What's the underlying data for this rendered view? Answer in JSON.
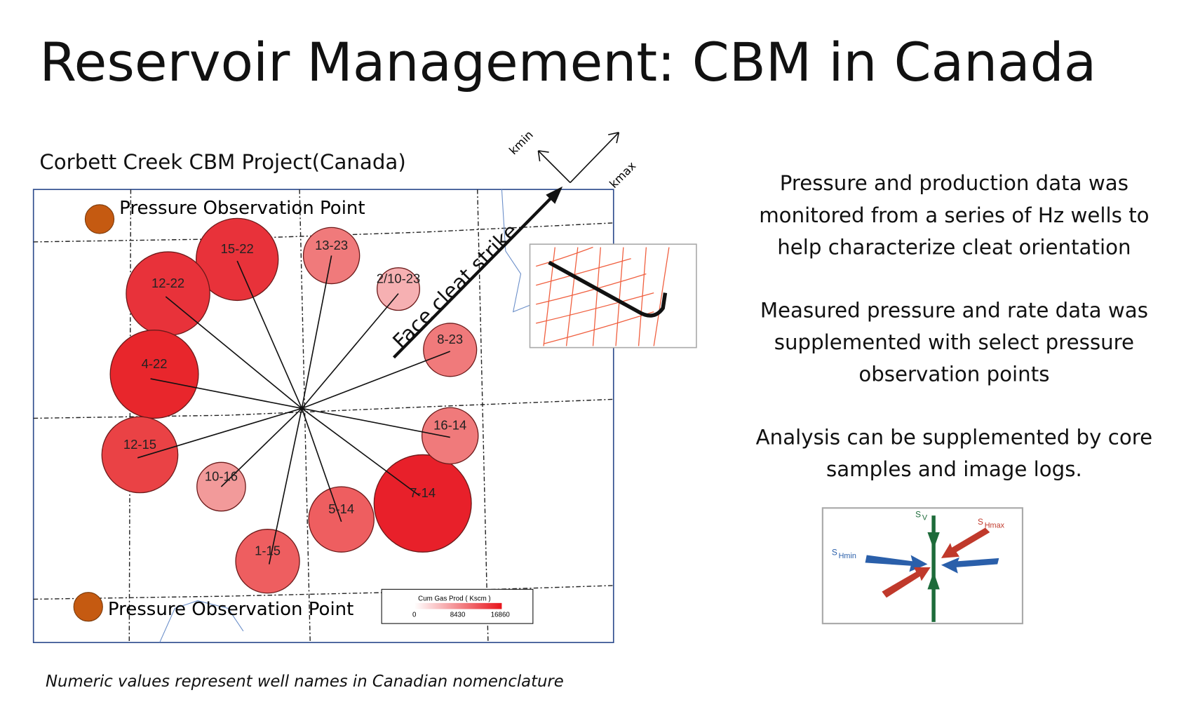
{
  "title": "Reservoir Management: CBM in Canada",
  "map": {
    "heading": "Corbett Creek CBM Project(Canada)",
    "observation_labels": [
      "Pressure Observation Point",
      "Pressure Observation Point"
    ],
    "strike_label": "Face cleat strike",
    "axes": {
      "kmin": "kmin",
      "kmax": "kmax"
    },
    "wells": [
      "15-22",
      "12-22",
      "4-22",
      "12-15",
      "10-16",
      "1-15",
      "5-14",
      "7-14",
      "16-14",
      "8-23",
      "2/10-23",
      "13-23"
    ],
    "legend": {
      "title": "Cum Gas Prod ( Kscm )",
      "ticks": [
        "0",
        "8430",
        "16860"
      ]
    },
    "caption": "Numeric values represent well names in Canadian nomenclature"
  },
  "paragraphs": [
    [
      "Pressure and production data was",
      "monitored from a series of Hz wells to",
      "help characterize cleat orientation"
    ],
    [
      "Measured pressure and rate data was",
      "supplemented with select pressure",
      "observation points"
    ],
    [
      "Analysis can be supplemented by core",
      "samples and image logs."
    ]
  ],
  "stress": {
    "sv": {
      "symbol": "S",
      "sub": "V"
    },
    "shmin": {
      "symbol": "S",
      "sub": "Hmin"
    },
    "shmax": {
      "symbol": "S",
      "sub": "Hmax"
    }
  }
}
